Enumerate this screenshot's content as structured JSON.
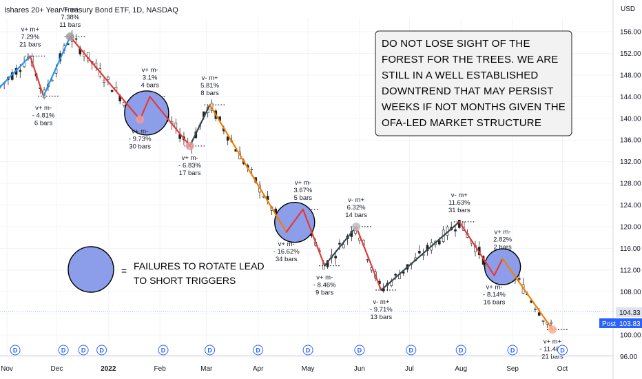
{
  "chart_title": "Ishares 20+ Year Treasury Bond ETF, 1D, NASDAQ",
  "currency": "USD",
  "note_lines": [
    "DO NOT LOSE SIGHT OF THE",
    "FOREST FOR THE TREES. WE ARE",
    "STILL IN A WELL ESTABLISHED",
    "DOWNTREND THAT MAY PERSIST",
    "WEEKS IF NOT MONTHS GIVEN THE",
    "OFA-LED MARKET STRUCTURE"
  ],
  "legend": {
    "symbol": "=",
    "lines": [
      "FAILURES TO ROTATE LEAD",
      "TO SHORT TRIGGERS"
    ]
  },
  "price_tags": {
    "current": "104.33",
    "post_label": "Post",
    "post_value": "103.83"
  },
  "event_marker_letter": "D",
  "colors": {
    "up_leg": "#2196f3",
    "down_leg": "#e53935",
    "neutral_leg": "#37474f",
    "orange_leg": "#f57c00",
    "circle_fill": "#8c9eea",
    "tag_blue": "#2962ff",
    "tag_gray": "#e0e3eb"
  },
  "chart_data": {
    "type": "line",
    "title": "Ishares 20+ Year Treasury Bond ETF, 1D, NASDAQ",
    "ylim": [
      95,
      158
    ],
    "yticks": [
      96.0,
      100.0,
      104.0,
      108.0,
      112.0,
      116.0,
      120.0,
      124.0,
      128.0,
      132.0,
      136.0,
      140.0,
      144.0,
      148.0,
      152.0,
      156.0
    ],
    "xticks": [
      {
        "label": "Nov",
        "x": 0
      },
      {
        "label": "Dec",
        "x": 30
      },
      {
        "label": "2022",
        "x": 61,
        "bold": true
      },
      {
        "label": "Feb",
        "x": 92
      },
      {
        "label": "Mar",
        "x": 120
      },
      {
        "label": "Apr",
        "x": 151
      },
      {
        "label": "May",
        "x": 181
      },
      {
        "label": "Jun",
        "x": 212
      },
      {
        "label": "Jul",
        "x": 242
      },
      {
        "label": "Aug",
        "x": 273
      },
      {
        "label": "Sep",
        "x": 304
      },
      {
        "label": "Oct",
        "x": 334
      }
    ],
    "xlim": [
      0,
      352
    ],
    "pivots": [
      {
        "x": -6,
        "y": 145.2
      },
      {
        "x": 14,
        "y": 151.5,
        "labels": [
          "v+ m+",
          "7.29%",
          "21 bars"
        ],
        "pos": "above"
      },
      {
        "x": 22,
        "y": 144.1,
        "labels": [
          "v+ m-",
          "- 4.81%",
          "6 bars"
        ],
        "pos": "below"
      },
      {
        "x": 38,
        "y": 155.1,
        "labels": [
          "v+ m+",
          "7.38%",
          "11 bars"
        ],
        "pos": "above"
      },
      {
        "x": 80,
        "y": 139.8,
        "labels": [
          "v+ m-",
          "- 9.73%",
          "30 bars"
        ],
        "pos": "below"
      },
      {
        "x": 86,
        "y": 144.0,
        "labels": [
          "v+ m-",
          "3.1%",
          "4 bars"
        ],
        "pos": "above"
      },
      {
        "x": 110,
        "y": 134.9,
        "labels": [
          "v+ m-",
          "- 6.83%",
          "17 bars"
        ],
        "pos": "below"
      },
      {
        "x": 122,
        "y": 142.5,
        "labels": [
          "v- m+",
          "5.81%",
          "8 bars"
        ],
        "pos": "above"
      },
      {
        "x": 168,
        "y": 119.0,
        "labels": [
          "v+ m-",
          "- 16.62%",
          "34 bars"
        ],
        "pos": "below"
      },
      {
        "x": 178,
        "y": 123.2,
        "labels": [
          "v+ m-",
          "3.67%",
          "5 bars"
        ],
        "pos": "above"
      },
      {
        "x": 191,
        "y": 112.8,
        "labels": [
          "v+ m-",
          "- 8.46%",
          "9 bars"
        ],
        "pos": "below"
      },
      {
        "x": 210,
        "y": 120.0,
        "labels": [
          "v- m+",
          "6.32%",
          "14 bars"
        ],
        "pos": "above"
      },
      {
        "x": 225,
        "y": 108.3,
        "labels": [
          "v- m+",
          "- 9.71%",
          "13 bars"
        ],
        "pos": "below"
      },
      {
        "x": 272,
        "y": 120.9,
        "labels": [
          "v- m+",
          "11.63%",
          "31 bars"
        ],
        "pos": "above"
      },
      {
        "x": 293,
        "y": 111.0,
        "labels": [
          "v+ m-",
          "- 8.14%",
          "16 bars"
        ],
        "pos": "below"
      },
      {
        "x": 298,
        "y": 114.1,
        "labels": [
          "v+ m-",
          "2.82%",
          "2 bars"
        ],
        "pos": "above"
      },
      {
        "x": 328,
        "y": 101.0,
        "labels": [
          "v+ m+",
          "- 11.48%",
          "21 bars"
        ],
        "pos": "below"
      }
    ],
    "legs": [
      "up_leg",
      "down_leg",
      "up_leg",
      "down_leg",
      "down_leg",
      "down_leg",
      "neutral_leg",
      "orange_leg",
      "down_leg",
      "down_leg",
      "neutral_leg",
      "down_leg",
      "neutral_leg",
      "down_leg",
      "down_leg",
      "orange_leg"
    ],
    "circles": [
      {
        "x": 84,
        "y": 141.0
      },
      {
        "x": 173,
        "y": 120.8
      },
      {
        "x": 298,
        "y": 112.6
      }
    ],
    "events_x": [
      5,
      34,
      46,
      57,
      94,
      122,
      151,
      181,
      212,
      243,
      273,
      304,
      334
    ]
  }
}
